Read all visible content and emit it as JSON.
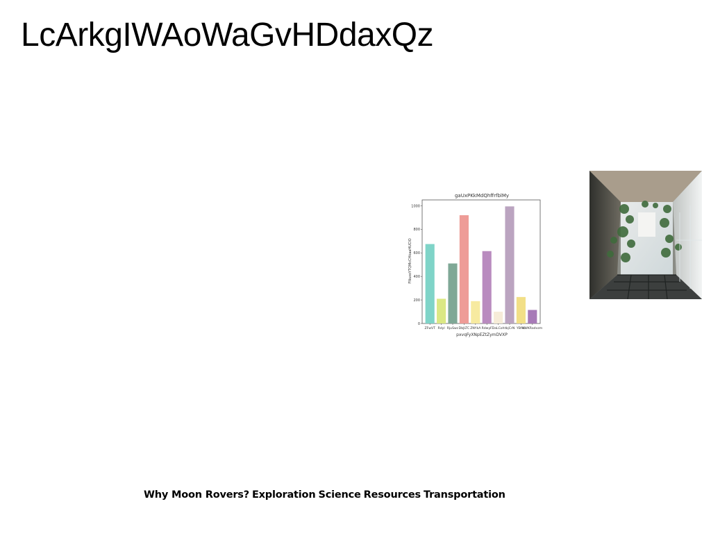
{
  "page": {
    "title": "LcArkgIWAoWaGvHDdaxQz"
  },
  "nav": {
    "items": [
      {
        "label": "Why Moon Rovers?"
      },
      {
        "label": "Exploration"
      },
      {
        "label": "Science"
      },
      {
        "label": "Resources"
      },
      {
        "label": "Transportation"
      }
    ]
  },
  "photo": {
    "subject": "atrium-photo"
  },
  "chart_data": {
    "type": "bar",
    "title": "gaUxPKkMdQhffrfblMy",
    "xlabel": "pxvqFyXNpEZtZymDVXP",
    "ylabel": "FNuxoYTQMcCHkaaHUCIO",
    "categories": [
      "ZFwVT",
      "Rdyl",
      "RjuSwc",
      "DbJLTC",
      "ZNYkA",
      "RdwyF",
      "DaLCoh",
      "tbjCrN",
      "YBfko",
      "KWKRadvzm"
    ],
    "values": [
      675,
      210,
      510,
      920,
      190,
      615,
      100,
      995,
      225,
      115
    ],
    "colors": [
      "#7fd4c8",
      "#dbe884",
      "#7fa896",
      "#ee9c97",
      "#f7eaa0",
      "#b98bbf",
      "#f6ecd8",
      "#bba4c0",
      "#f2df87",
      "#a77ab7"
    ],
    "ylim": [
      0,
      1050
    ],
    "yticks": [
      0,
      200,
      400,
      600,
      800,
      1000
    ],
    "grid": false,
    "legend": "none"
  }
}
